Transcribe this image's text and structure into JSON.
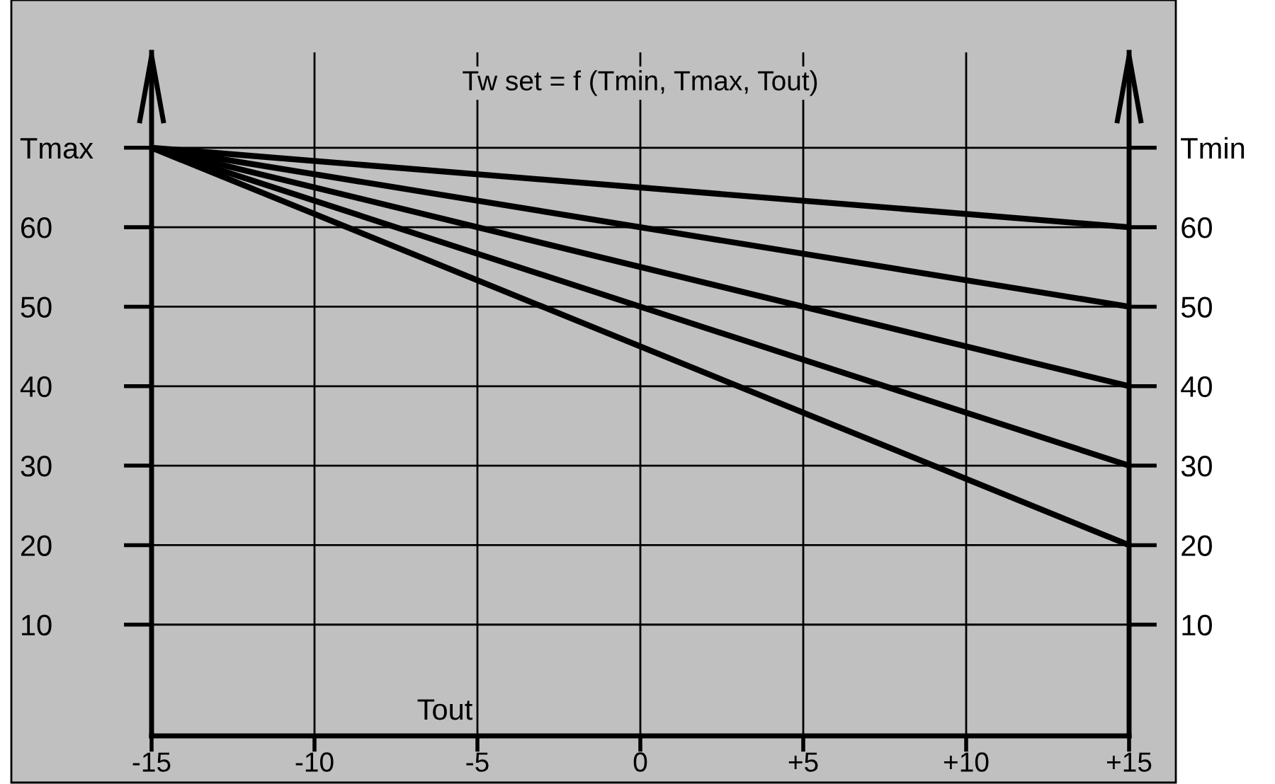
{
  "chart_data": {
    "type": "line",
    "title": "Tw set = f (Tmin, Tmax, Tout)",
    "xlabel": "Tout",
    "x": [
      -15,
      15
    ],
    "series": [
      {
        "color": "#000000",
        "values": [
          70,
          60
        ]
      },
      {
        "color": "#000000",
        "values": [
          70,
          50
        ]
      },
      {
        "color": "#000000",
        "values": [
          70,
          40
        ]
      },
      {
        "color": "#000000",
        "values": [
          70,
          30
        ]
      },
      {
        "color": "#000000",
        "values": [
          70,
          20
        ]
      }
    ],
    "xlim": [
      -15,
      15
    ],
    "ylim": [
      -4,
      82
    ],
    "y2lim": [
      -4,
      82
    ],
    "xticks": [
      {
        "value": -15,
        "label": "-15"
      },
      {
        "value": -10,
        "label": "-10"
      },
      {
        "value": -5,
        "label": "-5"
      },
      0,
      {
        "value": 5,
        "label": "+5"
      },
      {
        "value": 10,
        "label": "+10"
      },
      {
        "value": 15,
        "label": "+15"
      }
    ],
    "yticks": [
      10,
      20,
      30,
      40,
      50,
      60,
      {
        "value": 70,
        "label": "Tmax"
      }
    ],
    "y2ticks": [
      10,
      20,
      30,
      40,
      50,
      60,
      {
        "value": 70,
        "label": "Tmin"
      }
    ],
    "grid": true,
    "marker": "none",
    "line_style": "solid",
    "legend": false
  }
}
